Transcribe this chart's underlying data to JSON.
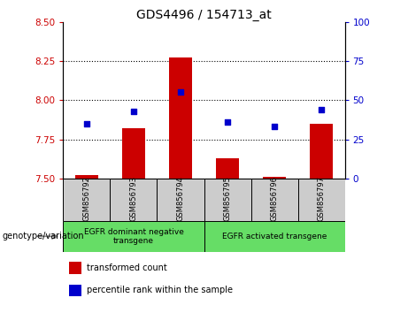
{
  "title": "GDS4496 / 154713_at",
  "samples": [
    "GSM856792",
    "GSM856793",
    "GSM856794",
    "GSM856795",
    "GSM856796",
    "GSM856797"
  ],
  "red_values": [
    7.52,
    7.82,
    8.27,
    7.63,
    7.51,
    7.85
  ],
  "blue_values": [
    35,
    43,
    55,
    36,
    33,
    44
  ],
  "ylim_left": [
    7.5,
    8.5
  ],
  "ylim_right": [
    0,
    100
  ],
  "yticks_left": [
    7.5,
    7.75,
    8.0,
    8.25,
    8.5
  ],
  "yticks_right": [
    0,
    25,
    50,
    75,
    100
  ],
  "hlines": [
    7.75,
    8.0,
    8.25
  ],
  "bar_bottom": 7.5,
  "red_color": "#cc0000",
  "blue_color": "#0000cc",
  "group1_label": "EGFR dominant negative\ntransgene",
  "group2_label": "EGFR activated transgene",
  "group_bg_color": "#66dd66",
  "sample_bg_color": "#cccccc",
  "legend_red": "transformed count",
  "legend_blue": "percentile rank within the sample",
  "genotype_label": "genotype/variation",
  "ylabel_left_color": "#cc0000",
  "ylabel_right_color": "#0000cc",
  "title_fontsize": 10,
  "tick_fontsize": 7.5,
  "bar_width": 0.5
}
